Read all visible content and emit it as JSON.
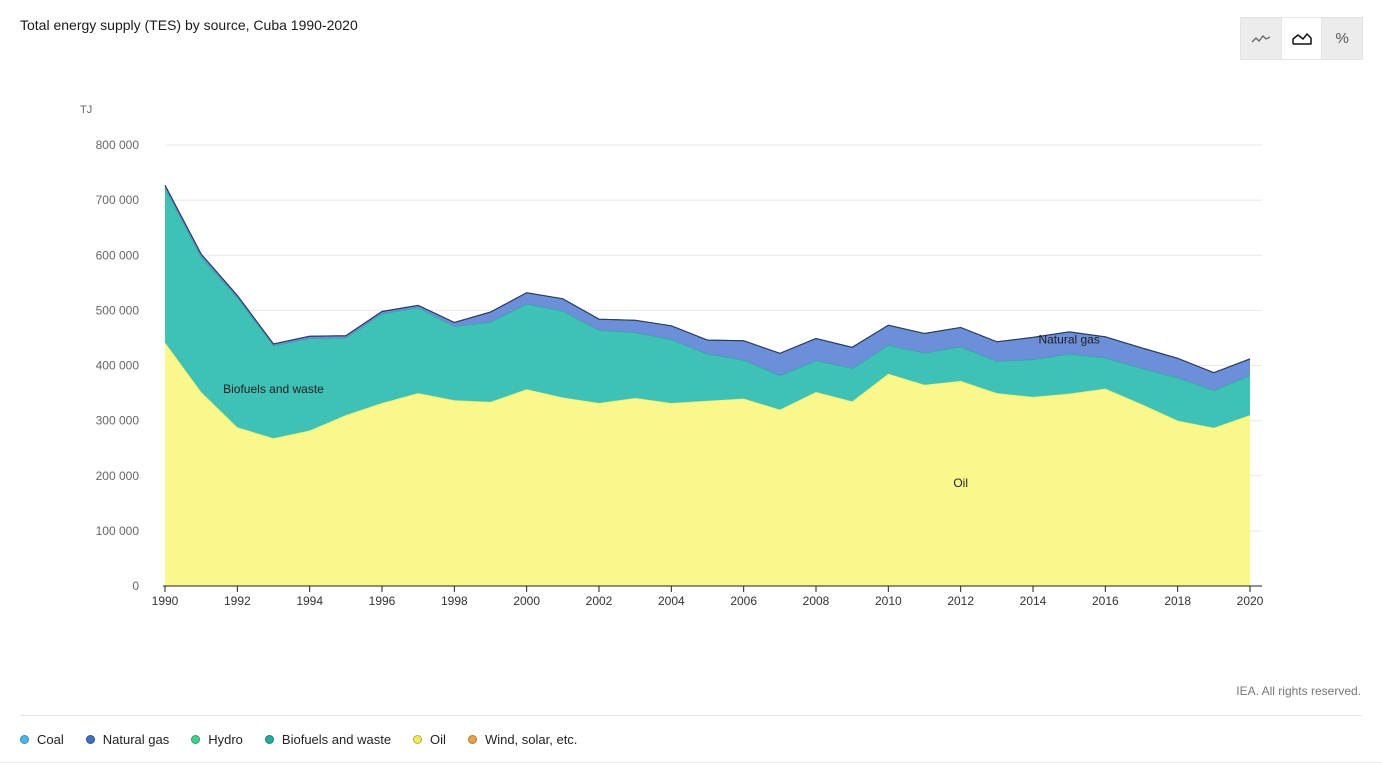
{
  "header": {
    "title": "Total energy supply (TES) by source, Cuba 1990-2020"
  },
  "toolbar": {
    "buttons": [
      {
        "icon": "line-chart-icon",
        "active": false
      },
      {
        "icon": "area-chart-icon",
        "active": true
      },
      {
        "icon": "percent-icon",
        "label": "%",
        "active": false
      }
    ]
  },
  "footer": {
    "copyright": "IEA. All rights reserved."
  },
  "legend": [
    {
      "label": "Coal",
      "color": "#4db8e8"
    },
    {
      "label": "Natural gas",
      "color": "#3f6fbf"
    },
    {
      "label": "Hydro",
      "color": "#3ed08f"
    },
    {
      "label": "Biofuels and waste",
      "color": "#27aaa0"
    },
    {
      "label": "Oil",
      "color": "#f2ea5a"
    },
    {
      "label": "Wind, solar, etc.",
      "color": "#e8a24a"
    }
  ],
  "chart_data": {
    "type": "area",
    "stacked": true,
    "unit": "TJ",
    "x": [
      1990,
      1991,
      1992,
      1993,
      1994,
      1995,
      1996,
      1997,
      1998,
      1999,
      2000,
      2001,
      2002,
      2003,
      2004,
      2005,
      2006,
      2007,
      2008,
      2009,
      2010,
      2011,
      2012,
      2013,
      2014,
      2015,
      2016,
      2017,
      2018,
      2019,
      2020
    ],
    "xticks": [
      1990,
      1992,
      1994,
      1996,
      1998,
      2000,
      2002,
      2004,
      2006,
      2008,
      2010,
      2012,
      2014,
      2016,
      2018,
      2020
    ],
    "yticks": [
      0,
      100000,
      200000,
      300000,
      400000,
      500000,
      600000,
      700000,
      800000
    ],
    "ytick_labels": [
      "0",
      "100 000",
      "200 000",
      "300 000",
      "400 000",
      "500 000",
      "600 000",
      "700 000",
      "800 000"
    ],
    "ylim": [
      0,
      800000
    ],
    "grid": true,
    "series": [
      {
        "name": "Oil",
        "color": "#faf88c",
        "stroke": "#f2ea5a",
        "values": [
          442000,
          352000,
          288000,
          268000,
          282000,
          310000,
          332000,
          350000,
          337000,
          334000,
          357000,
          342000,
          332000,
          341000,
          332000,
          336000,
          340000,
          320000,
          352000,
          335000,
          385000,
          365000,
          372000,
          350000,
          343000,
          349000,
          358000,
          330000,
          300000,
          287000,
          310000
        ]
      },
      {
        "name": "Biofuels and waste",
        "color": "#40c1b6",
        "stroke": "#27aaa0",
        "values": [
          280000,
          245000,
          235000,
          168000,
          167000,
          140000,
          162000,
          155000,
          134000,
          145000,
          155000,
          157000,
          132000,
          119000,
          115000,
          85000,
          70000,
          62000,
          57000,
          60000,
          52000,
          58000,
          62000,
          58000,
          68000,
          72000,
          56000,
          65000,
          78000,
          68000,
          72000
        ]
      },
      {
        "name": "Natural gas",
        "color": "#6b8fd8",
        "stroke": "#3f5fa8",
        "values": [
          5000,
          5000,
          4000,
          3000,
          4000,
          4000,
          4000,
          4000,
          7000,
          18000,
          20000,
          22000,
          20000,
          22000,
          25000,
          25000,
          35000,
          40000,
          40000,
          38000,
          36000,
          35000,
          35000,
          35000,
          40000,
          40000,
          38000,
          37000,
          35000,
          32000,
          30000
        ]
      }
    ],
    "annotations": [
      {
        "text": "Biofuels and waste",
        "x": 1993,
        "y": 350000
      },
      {
        "text": "Oil",
        "x": 2012,
        "y": 180000
      },
      {
        "text": "Natural gas",
        "x": 2015,
        "y": 440000
      }
    ]
  }
}
